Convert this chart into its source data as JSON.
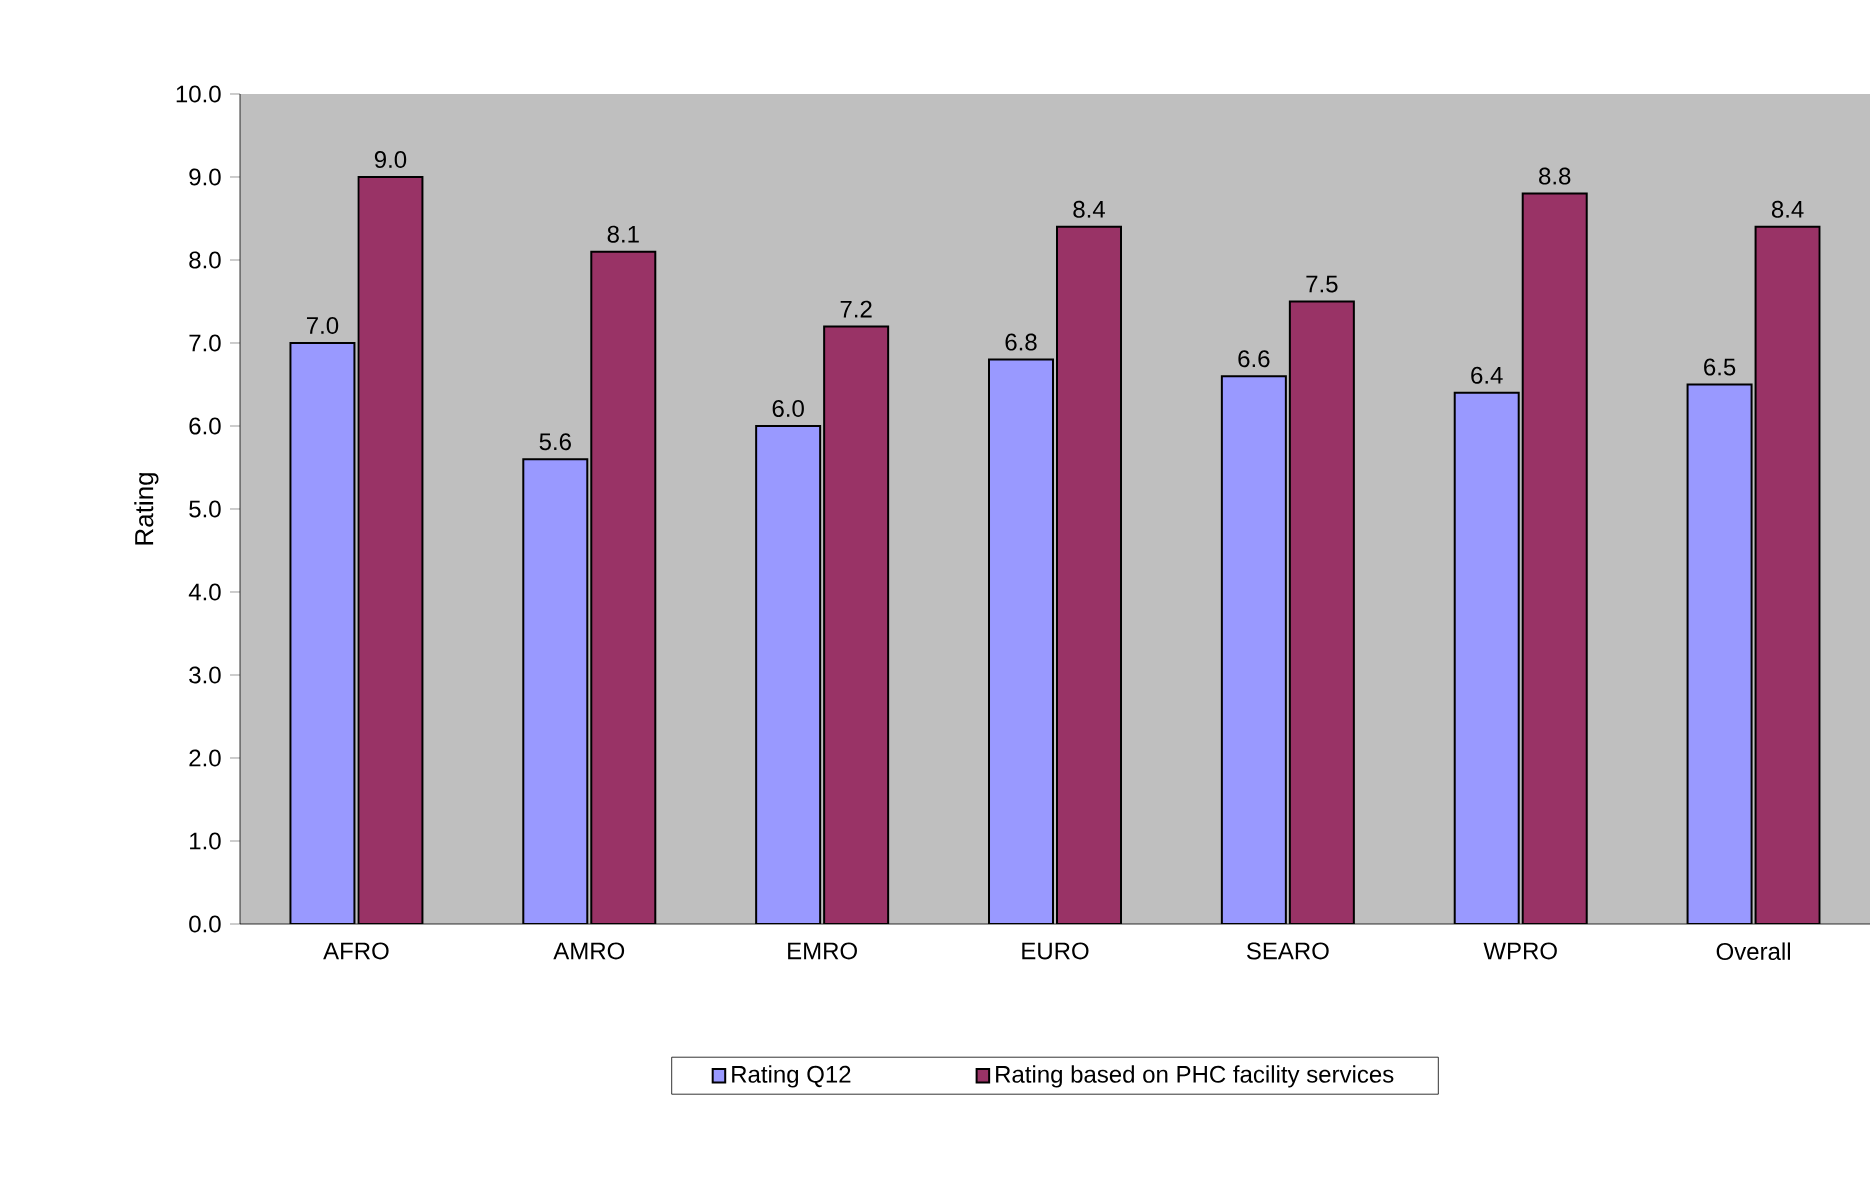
{
  "chart_data": {
    "type": "bar",
    "ylabel": "Rating",
    "categories": [
      "AFRO",
      "AMRO",
      "EMRO",
      "EURO",
      "SEARO",
      "WPRO",
      "Overall"
    ],
    "series": [
      {
        "name": "Rating Q12",
        "color": "#9999ff",
        "values": [
          7.0,
          5.6,
          6.0,
          6.8,
          6.6,
          6.4,
          6.5
        ],
        "value_labels": [
          "7.0",
          "5.6",
          "6.0",
          "6.8",
          "6.6",
          "6.4",
          "6.5"
        ]
      },
      {
        "name": "Rating based on PHC facility services",
        "color": "#993366",
        "values": [
          9.0,
          8.1,
          7.2,
          8.4,
          7.5,
          8.8,
          8.4
        ],
        "value_labels": [
          "9.0",
          "8.1",
          "7.2",
          "8.4",
          "7.5",
          "8.8",
          "8.4"
        ]
      }
    ],
    "ylim": [
      0,
      10
    ],
    "yticks": [
      {
        "value": 0,
        "label": "0.0"
      },
      {
        "value": 1,
        "label": "1.0"
      },
      {
        "value": 2,
        "label": "2.0"
      },
      {
        "value": 3,
        "label": "3.0"
      },
      {
        "value": 4,
        "label": "4.0"
      },
      {
        "value": 5,
        "label": "5.0"
      },
      {
        "value": 6,
        "label": "6.0"
      },
      {
        "value": 7,
        "label": "7.0"
      },
      {
        "value": 8,
        "label": "8.0"
      },
      {
        "value": 9,
        "label": "9.0"
      },
      {
        "value": 10,
        "label": "10.0"
      }
    ],
    "legend": "bottom",
    "grid": false
  }
}
